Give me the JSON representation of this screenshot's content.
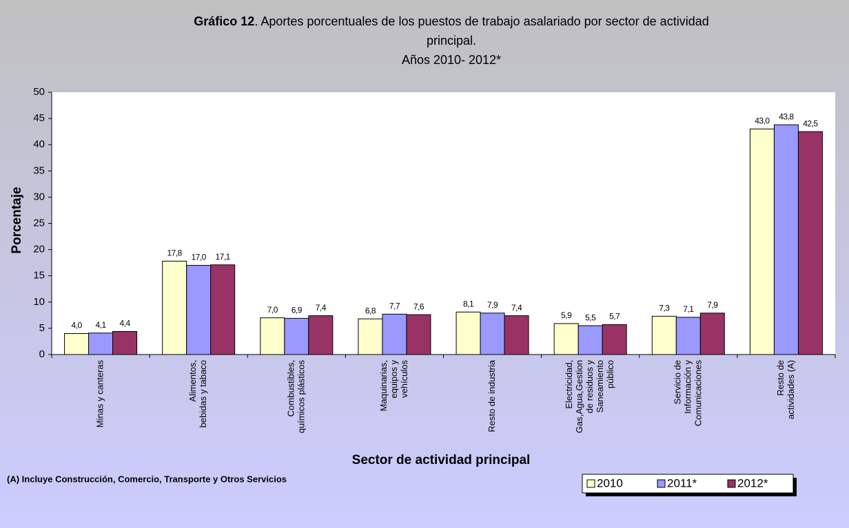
{
  "chart_data": {
    "type": "bar",
    "title_bold": "Gráfico 12",
    "title_lines": [
      ". Aportes porcentuales de los puestos de trabajo asalariado  por sector de actividad",
      "principal.",
      "Años 2010- 2012*"
    ],
    "y_label": "Porcentaje",
    "x_label": "Sector  de  actividad principal",
    "note": "(A) Incluye Construcción, Comercio, Transporte y Otros Servicios",
    "categories": [
      [
        "Minas y canteras"
      ],
      [
        "Alimentos,",
        "bebidas y tabaco"
      ],
      [
        "Combustibles,",
        "químicos plásticos"
      ],
      [
        "Maquinarias,",
        "equipos y",
        "vehículos"
      ],
      [
        "Resto de industria"
      ],
      [
        "Electricidad,",
        "Gas,Agua,Gestion",
        "de residuos y",
        "Saneamiento",
        "público"
      ],
      [
        "Servicio de",
        "Información y",
        "Comunicaciones"
      ],
      [
        "Resto de",
        "actividades (A)"
      ]
    ],
    "series": [
      {
        "name": "2010",
        "color": "#ffffcc",
        "values": [
          4.0,
          17.8,
          7.0,
          6.8,
          8.1,
          5.9,
          7.3,
          43.0
        ],
        "value_labels": [
          "4,0",
          "17,8",
          "7,0",
          "6,8",
          "8,1",
          "5,9",
          "7,3",
          "43,0"
        ]
      },
      {
        "name": "2011*",
        "color": "#9999ff",
        "values": [
          4.1,
          17.0,
          6.9,
          7.7,
          7.9,
          5.5,
          7.1,
          43.8
        ],
        "value_labels": [
          "4,1",
          "17,0",
          "6,9",
          "7,7",
          "7,9",
          "5,5",
          "7,1",
          "43,8"
        ]
      },
      {
        "name": "2012*",
        "color": "#993366",
        "values": [
          4.4,
          17.1,
          7.4,
          7.6,
          7.4,
          5.7,
          7.9,
          42.5
        ],
        "value_labels": [
          "4,4",
          "17,1",
          "7,4",
          "7,6",
          "7,4",
          "5,7",
          "7,9",
          "42,5"
        ]
      }
    ],
    "ylim": [
      0,
      50
    ],
    "yticks": [
      0,
      5,
      10,
      15,
      20,
      25,
      30,
      35,
      40,
      45,
      50
    ],
    "legend": "bottom-right"
  }
}
